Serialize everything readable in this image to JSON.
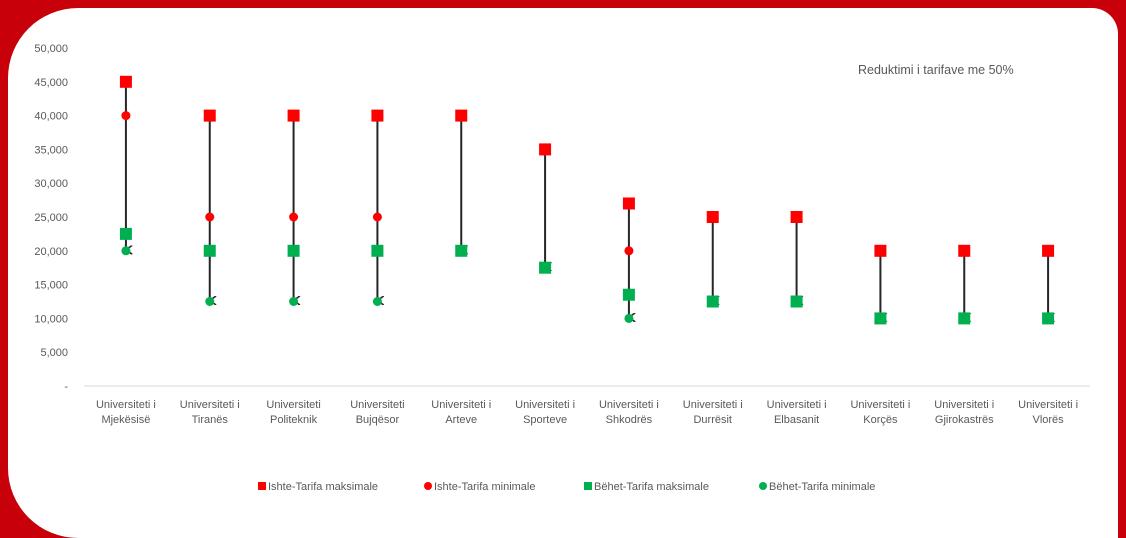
{
  "chart_data": {
    "type": "scatter",
    "title": "",
    "xlabel": "",
    "ylabel": "",
    "ylim": [
      0,
      50000
    ],
    "y_ticks": [
      "-",
      "5,000",
      "10,000",
      "15,000",
      "20,000",
      "25,000",
      "30,000",
      "35,000",
      "40,000",
      "45,000",
      "50,000"
    ],
    "y_tick_values": [
      0,
      5000,
      10000,
      15000,
      20000,
      25000,
      30000,
      35000,
      40000,
      45000,
      50000
    ],
    "grid": false,
    "categories": [
      [
        "Universiteti i",
        "Mjekësisë"
      ],
      [
        "Universiteti i",
        "Tiranës"
      ],
      [
        "Universiteti",
        "Politeknik"
      ],
      [
        "Universiteti",
        "Bujqësor"
      ],
      [
        "Universiteti i",
        "Arteve"
      ],
      [
        "Universiteti i",
        "Sporteve"
      ],
      [
        "Universiteti i",
        "Shkodrës"
      ],
      [
        "Universiteti i",
        "Durrësit"
      ],
      [
        "Universiteti i",
        "Elbasanit"
      ],
      [
        "Universiteti i",
        "Korçës"
      ],
      [
        "Universiteti i",
        "Gjirokastrës"
      ],
      [
        "Universiteti i",
        "Vlorës"
      ]
    ],
    "series": [
      {
        "name": "Ishte-Tarifa maksimale",
        "marker": "square",
        "color": "#ff0000",
        "values": [
          45000,
          40000,
          40000,
          40000,
          40000,
          35000,
          27000,
          25000,
          25000,
          20000,
          20000,
          20000
        ]
      },
      {
        "name": "Ishte-Tarifa minimale",
        "marker": "circle",
        "color": "#ff0000",
        "values": [
          40000,
          25000,
          25000,
          25000,
          null,
          null,
          20000,
          null,
          null,
          null,
          null,
          null
        ]
      },
      {
        "name": "Bëhet-Tarifa maksimale",
        "marker": "square",
        "color": "#00b050",
        "values": [
          22500,
          20000,
          20000,
          20000,
          20000,
          17500,
          13500,
          12500,
          12500,
          10000,
          10000,
          10000
        ]
      },
      {
        "name": "Bëhet-Tarifa minimale",
        "marker": "circle",
        "color": "#00b050",
        "values": [
          20000,
          12500,
          12500,
          12500,
          null,
          null,
          10000,
          null,
          null,
          null,
          null,
          null
        ]
      }
    ],
    "arrows": {
      "color": "#262626",
      "from": [
        45000,
        40000,
        40000,
        40000,
        40000,
        35000,
        27000,
        25000,
        25000,
        20000,
        20000,
        20000
      ],
      "to": [
        20000,
        12500,
        12500,
        12500,
        20000,
        17500,
        10000,
        12500,
        12500,
        10000,
        10000,
        10000
      ]
    },
    "annotation": "Reduktimi i tarifave me 50%",
    "legend_position": "bottom"
  }
}
